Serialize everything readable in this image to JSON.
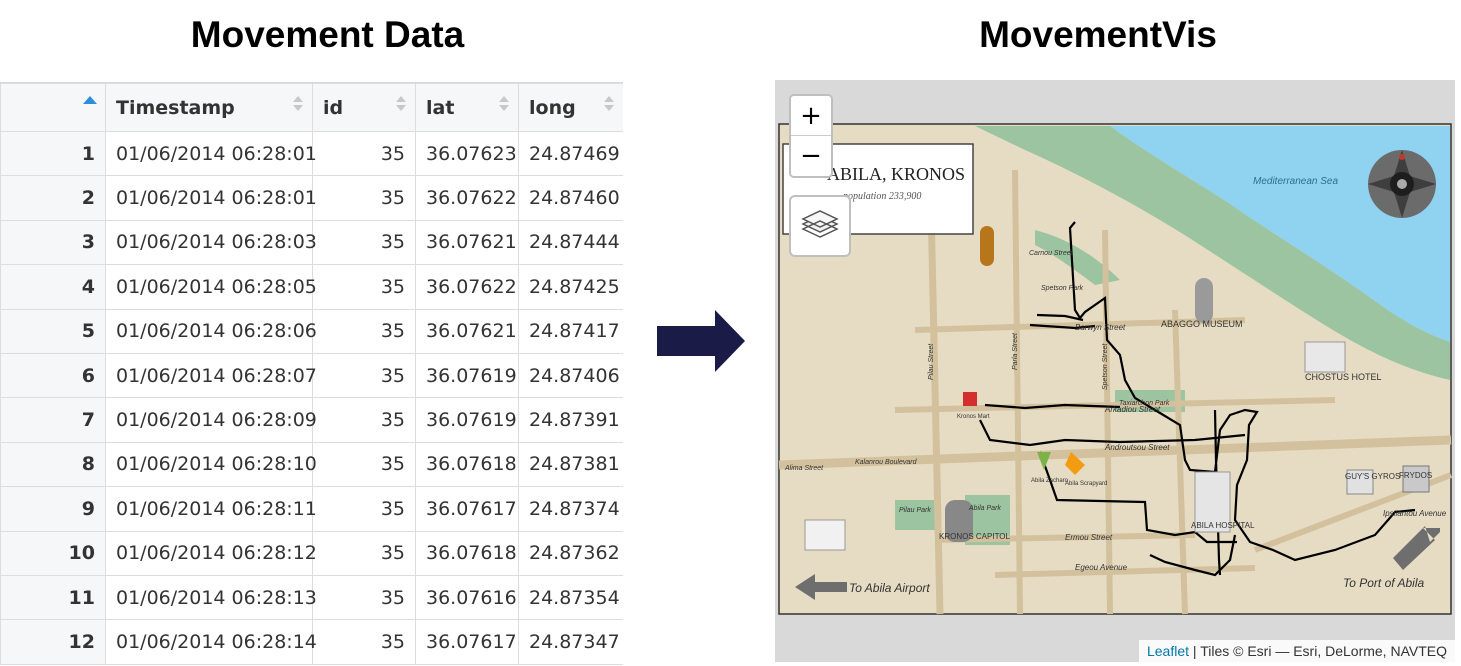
{
  "titles": {
    "left": "Movement Data",
    "right": "MovementVis"
  },
  "table": {
    "headers": [
      "",
      "Timestamp",
      "id",
      "lat",
      "long"
    ],
    "sorted_column": 0,
    "rows": [
      [
        "1",
        "01/06/2014 06:28:01",
        "35",
        "36.07623",
        "24.87469"
      ],
      [
        "2",
        "01/06/2014 06:28:01",
        "35",
        "36.07622",
        "24.87460"
      ],
      [
        "3",
        "01/06/2014 06:28:03",
        "35",
        "36.07621",
        "24.87444"
      ],
      [
        "4",
        "01/06/2014 06:28:05",
        "35",
        "36.07622",
        "24.87425"
      ],
      [
        "5",
        "01/06/2014 06:28:06",
        "35",
        "36.07621",
        "24.87417"
      ],
      [
        "6",
        "01/06/2014 06:28:07",
        "35",
        "36.07619",
        "24.87406"
      ],
      [
        "7",
        "01/06/2014 06:28:09",
        "35",
        "36.07619",
        "24.87391"
      ],
      [
        "8",
        "01/06/2014 06:28:10",
        "35",
        "36.07618",
        "24.87381"
      ],
      [
        "9",
        "01/06/2014 06:28:11",
        "35",
        "36.07617",
        "24.87374"
      ],
      [
        "10",
        "01/06/2014 06:28:12",
        "35",
        "36.07618",
        "24.87362"
      ],
      [
        "11",
        "01/06/2014 06:28:13",
        "35",
        "36.07616",
        "24.87354"
      ],
      [
        "12",
        "01/06/2014 06:28:14",
        "35",
        "36.07617",
        "24.87347"
      ]
    ]
  },
  "map": {
    "zoom_in": "+",
    "zoom_out": "−",
    "title_card": "ABILA, KRONOS",
    "subtitle_card": "population 233,900",
    "labels": {
      "sea": "Mediterranean Sea",
      "airport": "To Abila Airport",
      "port": "To Port of Abila",
      "museum": "ABAGGO MUSEUM",
      "hotel": "CHOSTUS HOTEL",
      "hospital": "ABILA HOSPITAL",
      "capitol": "KRONOS CAPITOL",
      "guys_gyros": "GUY'S GYROS",
      "frydos": "FRYDOS",
      "barwyn_street": "Barwyn Street",
      "arkadiou_street": "Arkadiou Street",
      "androutsou_street": "Androutsou Street",
      "ermou_street": "Ermou Street",
      "egeou_avenue": "Egeou Avenue",
      "ipsilantou_avenue": "Ipsilantou Avenue",
      "carnou_street": "Carnou Street",
      "alima_street": "Alima Street",
      "kalanrou_boulevard": "Kalanrou Boulevard",
      "pilau_street": "Pilau Street",
      "parla_street": "Parla Street",
      "spetson_street": "Spetson Street",
      "spetson_park": "Spetson Park",
      "taxiarchon_park": "Taxiarchon Park",
      "abila_park": "Abila Park",
      "pilau_park": "Pilau Park",
      "abila_zacharo": "Abila Zacharo",
      "abila_scrapyard": "Abila Scrapyard",
      "kronos_mart": "Kronos Mart"
    },
    "attribution_link": "Leaflet",
    "attribution_text": " | Tiles © Esri — Esri, DeLorme, NAVTEQ"
  },
  "colors": {
    "sea": "#8fd3f0",
    "land": "#e6dcc3",
    "park": "#9cc4a0",
    "road": "#d3c19d",
    "track": "#000000",
    "arrow": "#1b1b48",
    "sort_active": "#2f8ddb"
  }
}
